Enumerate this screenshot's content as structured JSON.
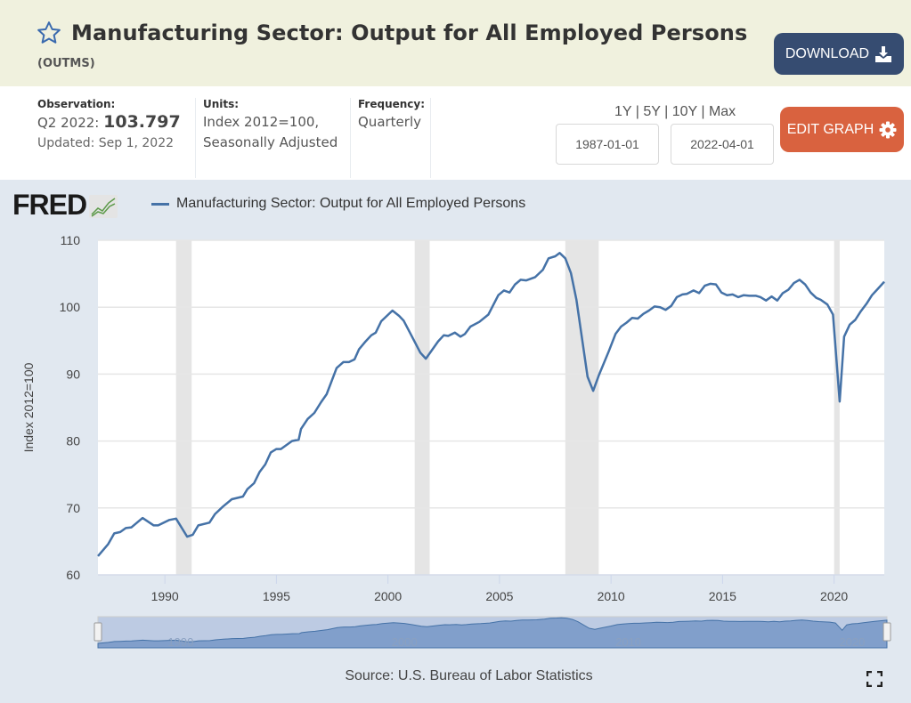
{
  "header": {
    "title": "Manufacturing Sector: Output for All Employed Persons",
    "series_id": "(OUTMS)",
    "download_label": "DOWNLOAD",
    "edit_graph_label": "EDIT GRAPH"
  },
  "info": {
    "observation_label": "Observation:",
    "observation_period": "Q2 2022:",
    "observation_value": "103.797",
    "updated": "Updated: Sep 1, 2022",
    "units_label": "Units:",
    "units_line1": "Index 2012=100,",
    "units_line2": "Seasonally Adjusted",
    "frequency_label": "Frequency:",
    "frequency_value": "Quarterly"
  },
  "range": {
    "links": [
      "1Y",
      "5Y",
      "10Y",
      "Max"
    ],
    "separator": "|",
    "start_date": "1987-01-01",
    "end_date": "2022-04-01"
  },
  "logo": "FRED",
  "colors": {
    "line": "#4572a7",
    "recession": "#e5e5e5",
    "download": "#364c71",
    "edit": "#d9623f"
  },
  "chart_data": {
    "type": "line",
    "title": "Manufacturing Sector: Output for All Employed Persons",
    "legend": [
      "Manufacturing Sector: Output for All Employed Persons"
    ],
    "legend_position": "top-left",
    "xlabel": "",
    "ylabel": "Index 2012=100",
    "xlim": [
      1987.0,
      2022.25
    ],
    "ylim": [
      60,
      110
    ],
    "yticks": [
      60,
      70,
      80,
      90,
      100,
      110
    ],
    "xticks": [
      1990,
      1995,
      2000,
      2005,
      2010,
      2015,
      2020
    ],
    "navigator_ticks": [
      1990,
      2000,
      2010,
      2020
    ],
    "grid": true,
    "recessions": [
      [
        1990.5,
        1991.2
      ],
      [
        2001.2,
        2001.87
      ],
      [
        2007.95,
        2009.45
      ],
      [
        2020.0,
        2020.25
      ]
    ],
    "source": "Source: U.S. Bureau of Labor Statistics",
    "series": [
      {
        "name": "OUTMS",
        "x": [
          1987.0,
          1987.46,
          1987.73,
          1988.0,
          1988.25,
          1988.5,
          1989.0,
          1989.5,
          1989.7,
          1990.2,
          1990.5,
          1991.0,
          1991.25,
          1991.5,
          1992.0,
          1992.25,
          1992.6,
          1993.0,
          1993.5,
          1993.7,
          1994.0,
          1994.25,
          1994.5,
          1994.75,
          1995.0,
          1995.2,
          1995.7,
          1996.0,
          1996.1,
          1996.4,
          1996.7,
          1997.0,
          1997.25,
          1997.7,
          1998.0,
          1998.25,
          1998.5,
          1998.7,
          1999.0,
          1999.25,
          1999.45,
          1999.7,
          2000.2,
          2000.5,
          2000.7,
          2001.05,
          2001.45,
          2001.7,
          2002.25,
          2002.5,
          2002.7,
          2003.0,
          2003.25,
          2003.45,
          2003.7,
          2004.1,
          2004.5,
          2004.95,
          2005.2,
          2005.45,
          2005.7,
          2005.95,
          2006.2,
          2006.6,
          2006.95,
          2007.2,
          2007.5,
          2007.7,
          2007.95,
          2008.2,
          2008.45,
          2008.95,
          2009.2,
          2009.45,
          2009.9,
          2010.2,
          2010.45,
          2010.7,
          2010.95,
          2011.2,
          2011.45,
          2011.7,
          2011.95,
          2012.2,
          2012.45,
          2012.7,
          2012.95,
          2013.2,
          2013.4,
          2013.7,
          2013.95,
          2014.2,
          2014.45,
          2014.7,
          2014.95,
          2015.2,
          2015.45,
          2015.7,
          2015.95,
          2016.2,
          2016.5,
          2016.7,
          2016.95,
          2017.2,
          2017.45,
          2017.7,
          2017.95,
          2018.2,
          2018.45,
          2018.7,
          2018.95,
          2019.2,
          2019.4,
          2019.7,
          2019.95,
          2020.25,
          2020.45,
          2020.7,
          2020.95,
          2021.2,
          2021.45,
          2021.7,
          2021.95,
          2022.25
        ],
        "y": [
          62.8,
          64.6,
          66.2,
          66.4,
          67.0,
          67.1,
          68.5,
          67.4,
          67.4,
          68.2,
          68.4,
          65.7,
          66.0,
          67.4,
          67.8,
          69.1,
          70.2,
          71.3,
          71.7,
          72.8,
          73.7,
          75.4,
          76.5,
          78.3,
          78.8,
          78.8,
          80.0,
          80.2,
          81.8,
          83.3,
          84.2,
          85.8,
          87.0,
          90.9,
          91.8,
          91.8,
          92.2,
          93.7,
          94.9,
          95.8,
          96.2,
          97.9,
          99.5,
          98.7,
          98.0,
          95.8,
          93.2,
          92.3,
          94.9,
          95.8,
          95.7,
          96.2,
          95.6,
          96.0,
          97.1,
          97.8,
          98.9,
          101.8,
          102.5,
          102.2,
          103.4,
          104.1,
          104.0,
          104.5,
          105.6,
          107.3,
          107.6,
          108.1,
          107.3,
          105.1,
          101.1,
          89.6,
          87.5,
          89.8,
          93.4,
          96.0,
          97.1,
          97.7,
          98.4,
          98.3,
          99.0,
          99.5,
          100.1,
          100.0,
          99.6,
          100.2,
          101.5,
          101.9,
          102.0,
          102.5,
          102.1,
          103.2,
          103.5,
          103.4,
          102.2,
          101.8,
          101.9,
          101.5,
          101.8,
          101.7,
          101.7,
          101.5,
          101.0,
          101.6,
          101.0,
          102.1,
          102.6,
          103.6,
          104.1,
          103.4,
          102.2,
          101.4,
          101.1,
          100.4,
          98.9,
          85.9,
          95.6,
          97.4,
          98.1,
          99.4,
          100.5,
          101.8,
          102.7,
          103.797
        ]
      }
    ]
  }
}
